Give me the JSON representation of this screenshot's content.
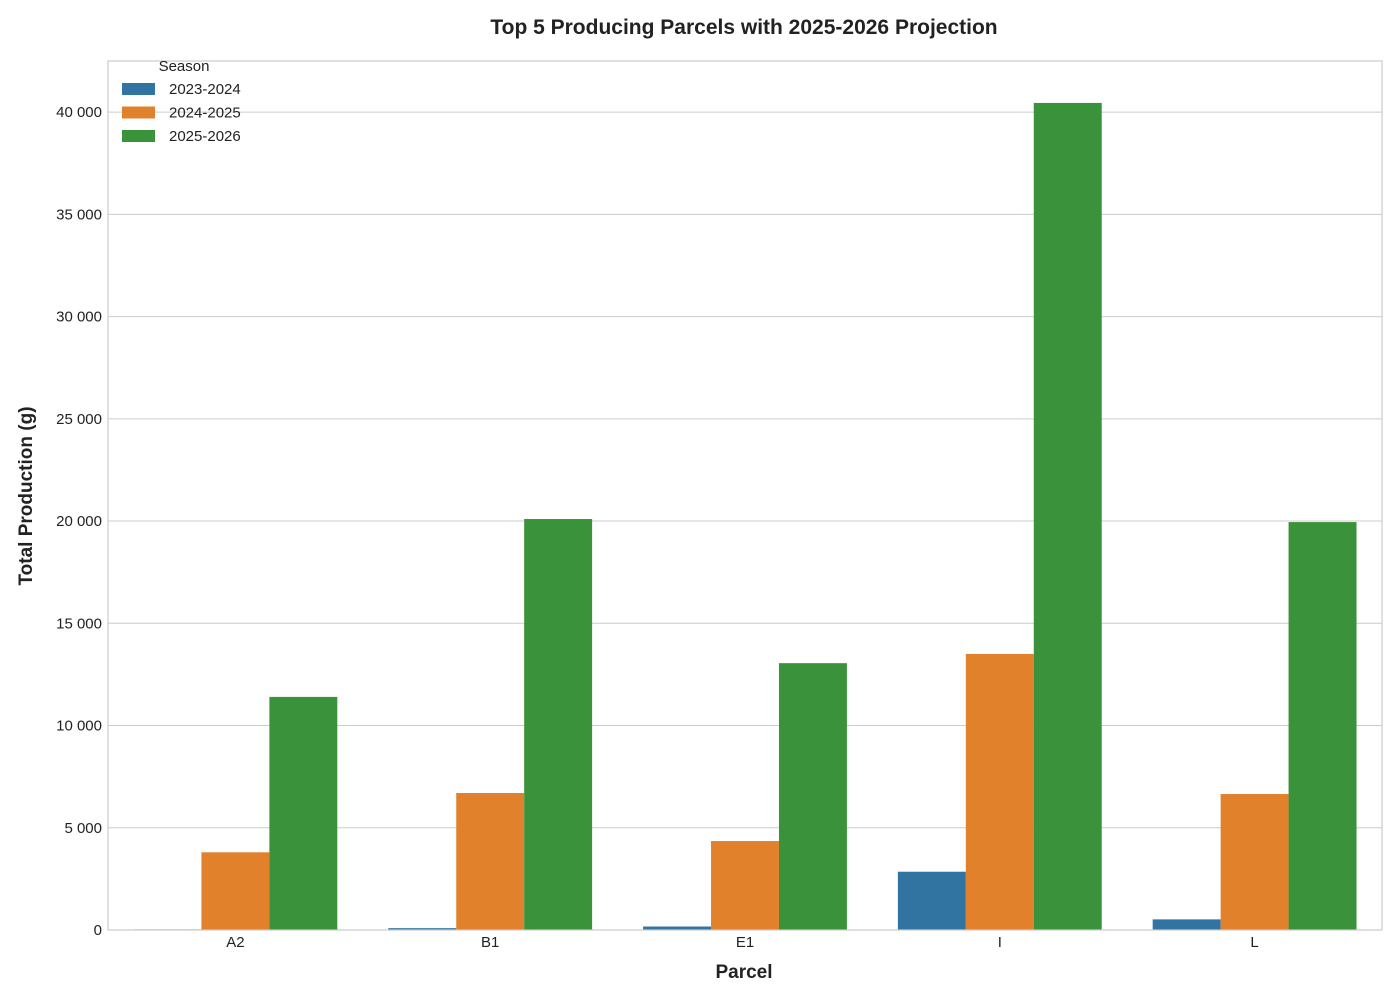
{
  "chart_data": {
    "type": "bar",
    "title": "Top 5 Producing Parcels with 2025-2026 Projection",
    "xlabel": "Parcel",
    "ylabel": "Total Production (g)",
    "categories": [
      "A2",
      "B1",
      "E1",
      "I",
      "L"
    ],
    "series": [
      {
        "name": "2023-2024",
        "color": "#3274a1",
        "values": [
          30,
          90,
          170,
          2850,
          520
        ]
      },
      {
        "name": "2024-2025",
        "color": "#e1812c",
        "values": [
          3800,
          6700,
          4350,
          13500,
          6650
        ]
      },
      {
        "name": "2025-2026",
        "color": "#3a923a",
        "values": [
          11400,
          20100,
          13050,
          40450,
          19950
        ]
      }
    ],
    "ylim": [
      0,
      42500
    ],
    "yticks": [
      0,
      5000,
      10000,
      15000,
      20000,
      25000,
      30000,
      35000,
      40000
    ],
    "ytick_labels": [
      "0",
      "5 000",
      "10 000",
      "15 000",
      "20 000",
      "25 000",
      "30 000",
      "35 000",
      "40 000"
    ],
    "grid": "horizontal",
    "legend": {
      "title": "Season",
      "placement": "top-left"
    }
  }
}
